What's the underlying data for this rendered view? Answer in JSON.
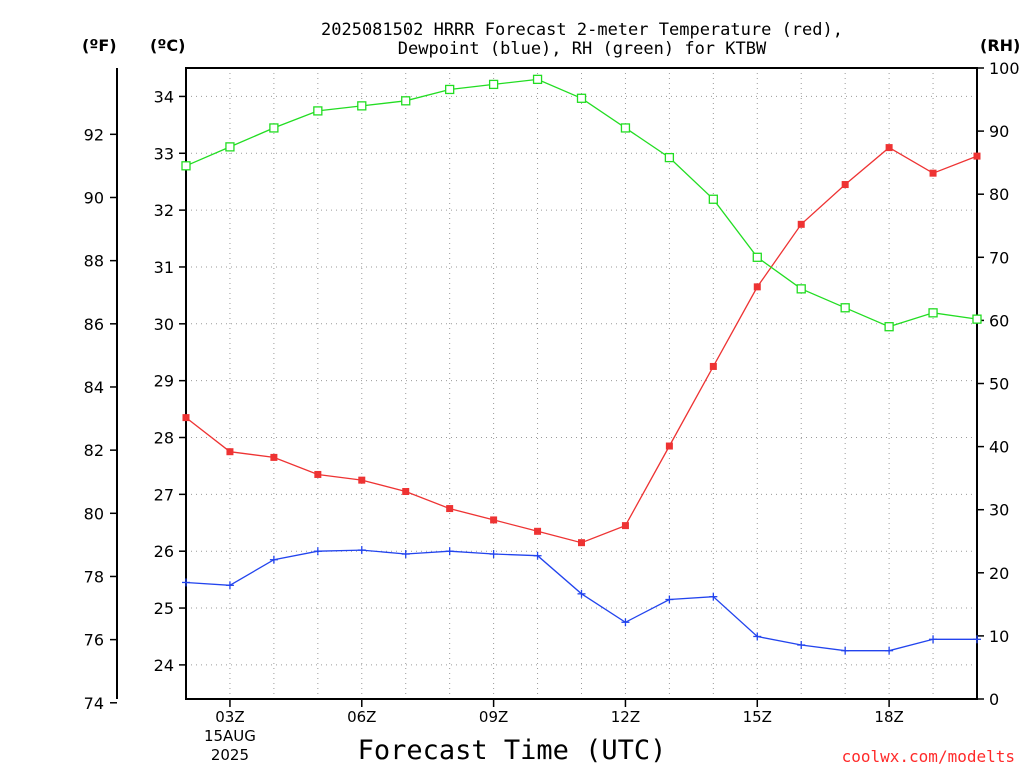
{
  "chart_data": {
    "type": "line",
    "title_line1": "2025081502 HRRR Forecast 2-meter Temperature (red),",
    "title_line2": "Dewpoint (blue), RH (green) for KTBW",
    "xlabel": "Forecast Time (UTC)",
    "credit": "coolwx.com/modelts",
    "unit_labels": {
      "left_f": "(ºF)",
      "left_c": "(ºC)",
      "right_rh": "(RH)"
    },
    "x": [
      2,
      3,
      4,
      5,
      6,
      7,
      8,
      9,
      10,
      11,
      12,
      13,
      14,
      15,
      16,
      17,
      18,
      19,
      20
    ],
    "x_ticks": [
      {
        "x": 3,
        "label": "03Z",
        "sub1": "15AUG",
        "sub2": "2025"
      },
      {
        "x": 6,
        "label": "06Z"
      },
      {
        "x": 9,
        "label": "09Z"
      },
      {
        "x": 12,
        "label": "12Z"
      },
      {
        "x": 15,
        "label": "15Z"
      },
      {
        "x": 18,
        "label": "18Z"
      }
    ],
    "xlim": [
      2,
      20
    ],
    "ylim_c": [
      23.4,
      34.5
    ],
    "ylim_rh": [
      0,
      100
    ],
    "f_ticks": [
      "74",
      "76",
      "78",
      "80",
      "82",
      "84",
      "86",
      "88",
      "90",
      "92"
    ],
    "c_ticks": [
      "24",
      "25",
      "26",
      "27",
      "28",
      "29",
      "30",
      "31",
      "32",
      "33",
      "34"
    ],
    "rh_ticks": [
      "0",
      "10",
      "20",
      "30",
      "40",
      "50",
      "60",
      "70",
      "80",
      "90",
      "100"
    ],
    "grid": true,
    "series": [
      {
        "name": "Temperature",
        "axis": "c",
        "color": "#ee3333",
        "marker": "filled-square",
        "values": [
          28.35,
          27.75,
          27.65,
          27.35,
          27.25,
          27.05,
          26.75,
          26.55,
          26.35,
          26.15,
          26.45,
          27.85,
          29.25,
          30.65,
          31.75,
          32.45,
          33.1,
          32.65,
          32.95
        ]
      },
      {
        "name": "Dewpoint",
        "axis": "c",
        "color": "#2244ee",
        "marker": "plus",
        "values": [
          25.45,
          25.4,
          25.85,
          26.0,
          26.02,
          25.95,
          26.0,
          25.95,
          25.92,
          25.25,
          24.75,
          25.15,
          25.2,
          24.5,
          24.35,
          24.25,
          24.25,
          24.45,
          24.45
        ]
      },
      {
        "name": "RH",
        "axis": "rh",
        "color": "#22dd22",
        "marker": "open-square",
        "values": [
          84.5,
          87.5,
          90.5,
          93.2,
          94.0,
          94.8,
          96.6,
          97.4,
          98.2,
          95.2,
          90.5,
          85.8,
          79.2,
          70.0,
          65.0,
          62.0,
          59.0,
          61.2,
          60.2
        ]
      }
    ]
  }
}
